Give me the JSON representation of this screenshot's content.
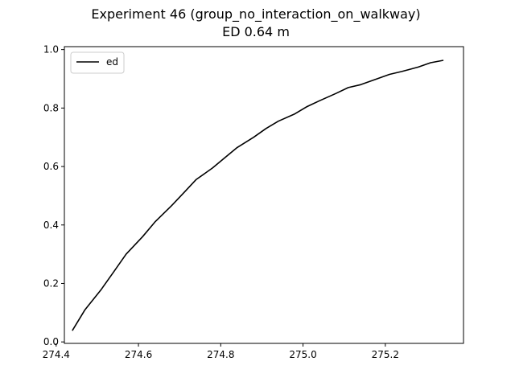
{
  "chart_data": {
    "type": "line",
    "title": "Experiment 46 (group_no_interaction_on_walkway)",
    "subtitle": "ED 0.64 m",
    "xlabel": "",
    "ylabel": "",
    "xlim": [
      274.42,
      275.39
    ],
    "ylim": [
      -0.005,
      1.01
    ],
    "x_ticks": [
      {
        "value": 274.4,
        "label": "274.4"
      },
      {
        "value": 274.6,
        "label": "274.6"
      },
      {
        "value": 274.8,
        "label": "274.8"
      },
      {
        "value": 275.0,
        "label": "275.0"
      },
      {
        "value": 275.2,
        "label": "275.2"
      }
    ],
    "y_ticks": [
      {
        "value": 0.0,
        "label": "0.0"
      },
      {
        "value": 0.2,
        "label": "0.2"
      },
      {
        "value": 0.4,
        "label": "0.4"
      },
      {
        "value": 0.6,
        "label": "0.6"
      },
      {
        "value": 0.8,
        "label": "0.8"
      },
      {
        "value": 1.0,
        "label": "1.0"
      }
    ],
    "grid": false,
    "legend": {
      "placement": "top-left"
    },
    "series": [
      {
        "name": "ed",
        "color": "#000000",
        "x": [
          274.44,
          274.47,
          274.51,
          274.54,
          274.57,
          274.61,
          274.64,
          274.68,
          274.71,
          274.74,
          274.78,
          274.81,
          274.84,
          274.88,
          274.91,
          274.94,
          274.98,
          275.01,
          275.04,
          275.08,
          275.11,
          275.14,
          275.18,
          275.21,
          275.24,
          275.28,
          275.31,
          275.34
        ],
        "y": [
          0.04,
          0.11,
          0.18,
          0.24,
          0.3,
          0.36,
          0.41,
          0.465,
          0.51,
          0.555,
          0.595,
          0.63,
          0.665,
          0.7,
          0.73,
          0.755,
          0.78,
          0.805,
          0.825,
          0.85,
          0.87,
          0.88,
          0.9,
          0.915,
          0.925,
          0.94,
          0.955,
          0.963
        ]
      }
    ]
  }
}
